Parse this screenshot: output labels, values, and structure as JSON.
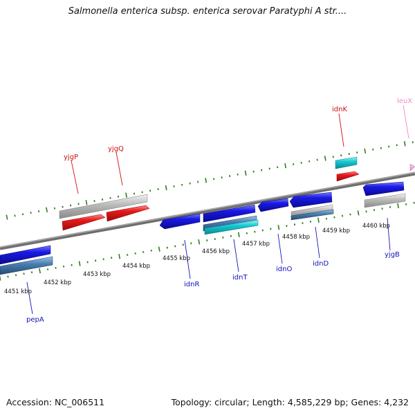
{
  "title": "Salmonella enterica subsp. enterica serovar Paratyphi A str....",
  "footer": {
    "accession": "Accession: NC_006511",
    "topology": "Topology: circular; Length: 4,585,229 bp; Genes: 4,232"
  },
  "colors": {
    "backbone": "#808080",
    "tick_green": "#2e7d1e",
    "gene_blue": "#1a1ae6",
    "gene_red": "#e81a1a",
    "gene_cyan": "#16c8d0",
    "gene_steel": "#4a7fb0",
    "gene_gray": "#b8b8b8",
    "gene_pink": "#f0a0d0",
    "label_red": "#cc1111",
    "label_blue": "#1111bb",
    "label_pink": "#ee88cc"
  },
  "scale_labels": [
    "4451 kbp",
    "4452 kbp",
    "4453 kbp",
    "4454 kbp",
    "4455 kbp",
    "4456 kbp",
    "4457 kbp",
    "4458 kbp",
    "4459 kbp",
    "4460 kbp"
  ],
  "gene_labels": [
    {
      "name": "yjgP",
      "color": "red"
    },
    {
      "name": "yjgQ",
      "color": "red"
    },
    {
      "name": "idnK",
      "color": "red"
    },
    {
      "name": "leuX",
      "color": "pink"
    },
    {
      "name": "pepA",
      "color": "blue"
    },
    {
      "name": "idnR",
      "color": "blue"
    },
    {
      "name": "idnT",
      "color": "blue"
    },
    {
      "name": "idnO",
      "color": "blue"
    },
    {
      "name": "idnD",
      "color": "blue"
    },
    {
      "name": "yjgB",
      "color": "blue"
    }
  ]
}
